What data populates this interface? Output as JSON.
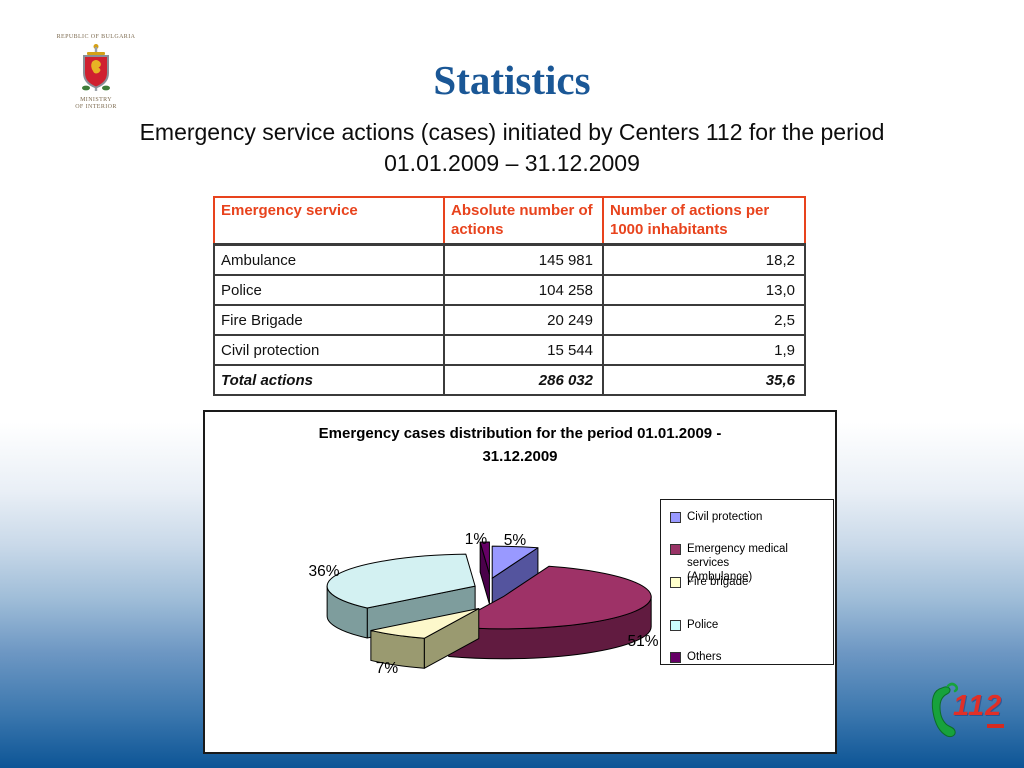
{
  "slide": {
    "title": "Statistics",
    "subtitle_line1": "Emergency service actions (cases) initiated by Centers 112  for the period",
    "subtitle_line2": "01.01.2009 – 31.12.2009"
  },
  "gov_logo": {
    "top_caption": "Republic of Bulgaria",
    "bottom_caption_line1": "Ministry",
    "bottom_caption_line2": "of Interior"
  },
  "table": {
    "headers": [
      "Emergency service",
      "Absolute number of actions",
      "Number of actions per 1000 inhabitants"
    ],
    "rows": [
      {
        "service": "Ambulance",
        "absolute": "145 981",
        "per1000": "18,2"
      },
      {
        "service": "Police",
        "absolute": "104 258",
        "per1000": "13,0"
      },
      {
        "service": "Fire Brigade",
        "absolute": "20 249",
        "per1000": "2,5"
      },
      {
        "service": "Civil protection",
        "absolute": "15 544",
        "per1000": "1,9"
      }
    ],
    "total_row": {
      "service": "Total actions",
      "absolute": "286 032",
      "per1000": "35,6"
    }
  },
  "chart_data": {
    "type": "pie",
    "style": "3d-exploded",
    "title_line1": "Emergency cases distribution for the period  01.01.2009 -",
    "title_line2": "31.12.2009",
    "slices": [
      {
        "label": "Civil protection",
        "value": 5,
        "percent_label": "5%",
        "color": "#9999FF",
        "side_color": "#54549E"
      },
      {
        "label": "Emergency medical services (Ambulance)",
        "value": 51,
        "percent_label": "51%",
        "color": "#9E3267",
        "side_color": "#611B40"
      },
      {
        "label": "Fire brigade",
        "value": 7,
        "percent_label": "7%",
        "color": "#FDF8CB",
        "side_color": "#9A9A70"
      },
      {
        "label": "Police",
        "value": 36,
        "percent_label": "36%",
        "color": "#D3F1F2",
        "side_color": "#7E9D9D"
      },
      {
        "label": "Others",
        "value": 1,
        "percent_label": "1%",
        "color": "#660066",
        "side_color": "#4A014A"
      }
    ],
    "legend": [
      {
        "label": "Civil protection",
        "label2": "",
        "color": "#9999FF"
      },
      {
        "label": "Emergency medical services",
        "label2": "(Ambulance)",
        "color": "#993366"
      },
      {
        "label": "Fire brigade",
        "label2": "",
        "color": "#FFFFCC"
      },
      {
        "label": "Police",
        "label2": "",
        "color": "#CCFFFF"
      },
      {
        "label": "Others",
        "label2": "",
        "color": "#660066"
      }
    ],
    "legend_position": "right"
  },
  "footer_logo": {
    "number": "112"
  }
}
